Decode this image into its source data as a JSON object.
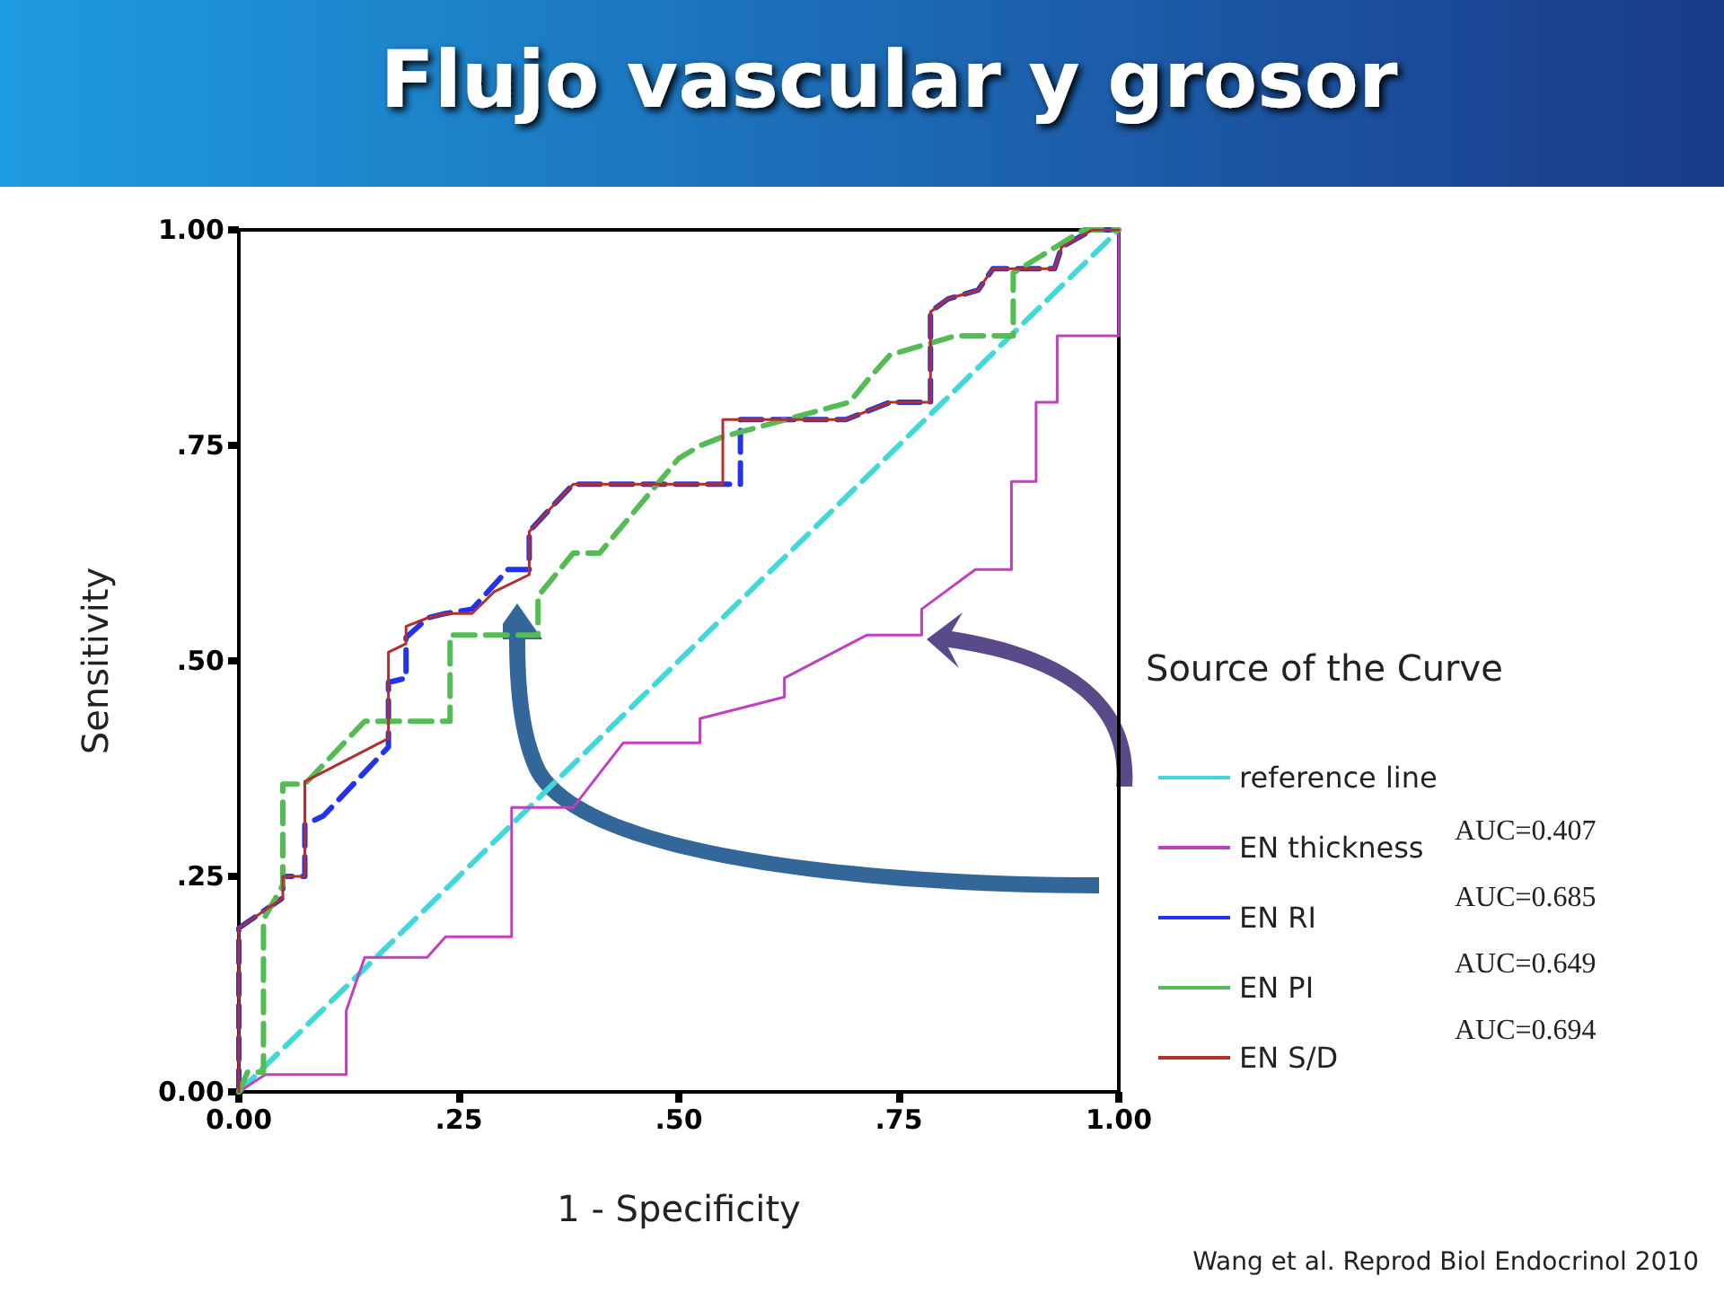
{
  "chart_data": {
    "type": "line",
    "title": "Flujo vascular y grosor",
    "xlabel": "1 - Specificity",
    "ylabel": "Sensitivity",
    "legend_title": "Source of the Curve",
    "xlim": [
      0,
      1
    ],
    "ylim": [
      0,
      1
    ],
    "xticks": [
      {
        "value": 0,
        "label": "0.00"
      },
      {
        "value": 0.25,
        "label": ".25"
      },
      {
        "value": 0.5,
        "label": ".50"
      },
      {
        "value": 0.75,
        "label": ".75"
      },
      {
        "value": 1,
        "label": "1.00"
      }
    ],
    "yticks": [
      {
        "value": 0,
        "label": "0.00"
      },
      {
        "value": 0.25,
        "label": ".25"
      },
      {
        "value": 0.5,
        "label": ".50"
      },
      {
        "value": 0.75,
        "label": ".75"
      },
      {
        "value": 1,
        "label": "1.00"
      }
    ],
    "grid": false,
    "legend": "right",
    "marker": "none",
    "series": [
      {
        "name": "reference line",
        "color": "#40d8d8",
        "line_style": "dashed",
        "x": [
          0,
          1
        ],
        "values": [
          0,
          1
        ]
      },
      {
        "name": "EN thickness",
        "color": "#c040c0",
        "line_style": "solid",
        "x": [
          0,
          0.03,
          0.122,
          0.122,
          0.143,
          0.214,
          0.235,
          0.31,
          0.31,
          0.38,
          0.437,
          0.524,
          0.524,
          0.62,
          0.62,
          0.714,
          0.776,
          0.776,
          0.837,
          0.878,
          0.878,
          0.906,
          0.906,
          0.93,
          0.93,
          1,
          1
        ],
        "values": [
          0,
          0.02,
          0.02,
          0.094,
          0.156,
          0.156,
          0.18,
          0.18,
          0.33,
          0.33,
          0.405,
          0.405,
          0.433,
          0.458,
          0.48,
          0.53,
          0.53,
          0.56,
          0.606,
          0.606,
          0.708,
          0.708,
          0.8,
          0.8,
          0.877,
          0.877,
          1
        ]
      },
      {
        "name": "EN RI",
        "color": "#2233ee",
        "line_style": "dashed",
        "x": [
          0,
          0,
          0.05,
          0.05,
          0.075,
          0.075,
          0.096,
          0.17,
          0.17,
          0.19,
          0.19,
          0.215,
          0.235,
          0.265,
          0.306,
          0.33,
          0.33,
          0.357,
          0.38,
          0.57,
          0.57,
          0.69,
          0.74,
          0.786,
          0.786,
          0.806,
          0.84,
          0.857,
          0.927,
          0.935,
          0.97,
          1
        ],
        "values": [
          0,
          0.19,
          0.225,
          0.25,
          0.25,
          0.31,
          0.32,
          0.4,
          0.475,
          0.48,
          0.527,
          0.55,
          0.555,
          0.56,
          0.606,
          0.606,
          0.65,
          0.68,
          0.705,
          0.705,
          0.78,
          0.78,
          0.8,
          0.8,
          0.905,
          0.92,
          0.93,
          0.955,
          0.955,
          0.98,
          1,
          1
        ]
      },
      {
        "name": "EN PI",
        "color": "#55bb55",
        "line_style": "dashed",
        "x": [
          0,
          0.01,
          0.028,
          0.028,
          0.05,
          0.05,
          0.075,
          0.143,
          0.24,
          0.24,
          0.34,
          0.34,
          0.38,
          0.41,
          0.5,
          0.525,
          0.55,
          0.694,
          0.714,
          0.74,
          0.814,
          0.88,
          0.88,
          0.96,
          1
        ],
        "values": [
          0,
          0.023,
          0.023,
          0.2,
          0.24,
          0.357,
          0.357,
          0.43,
          0.43,
          0.53,
          0.53,
          0.575,
          0.625,
          0.625,
          0.735,
          0.75,
          0.76,
          0.8,
          0.825,
          0.855,
          0.877,
          0.877,
          0.95,
          1,
          1
        ]
      },
      {
        "name": "EN S/D",
        "color": "#b03030",
        "line_style": "solid",
        "x": [
          0,
          0,
          0.05,
          0.05,
          0.075,
          0.075,
          0.17,
          0.17,
          0.19,
          0.19,
          0.215,
          0.235,
          0.265,
          0.29,
          0.33,
          0.33,
          0.357,
          0.38,
          0.55,
          0.55,
          0.69,
          0.74,
          0.786,
          0.786,
          0.806,
          0.84,
          0.857,
          0.927,
          0.935,
          0.97,
          1
        ],
        "values": [
          0,
          0.19,
          0.225,
          0.25,
          0.25,
          0.36,
          0.41,
          0.51,
          0.52,
          0.54,
          0.55,
          0.555,
          0.555,
          0.58,
          0.6,
          0.65,
          0.68,
          0.705,
          0.705,
          0.78,
          0.78,
          0.8,
          0.8,
          0.905,
          0.92,
          0.93,
          0.955,
          0.955,
          0.98,
          1,
          1
        ]
      }
    ],
    "annotations": [
      "AUC=0.407",
      "AUC=0.685",
      "AUC=0.649",
      "AUC=0.694",
      "Wang et al. Reprod Biol Endocrinol 2010"
    ]
  }
}
